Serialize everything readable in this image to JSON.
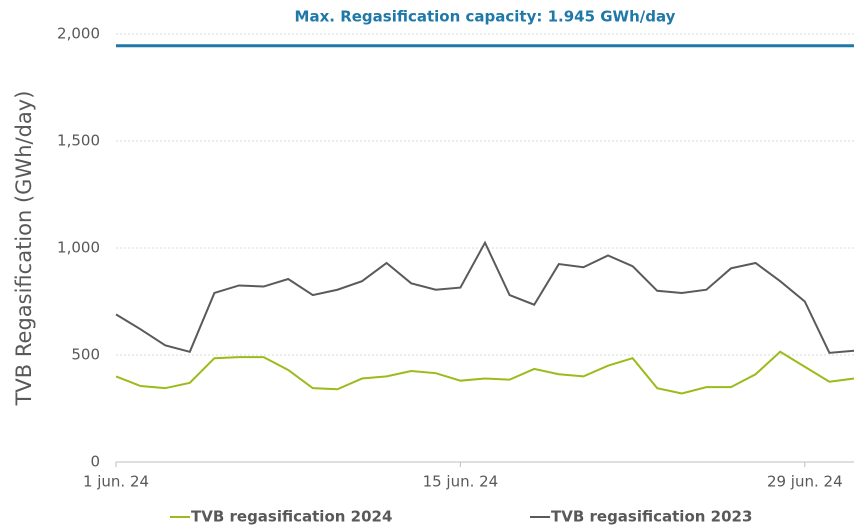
{
  "chart_data": {
    "type": "line",
    "y_label": "TVB Regasification (GWh/day)",
    "annotation": {
      "text": "Max. Regasification capacity: 1.945 GWh/day",
      "value": 1945,
      "color": "#1f78a8"
    },
    "categories": [
      "1 jun. 24",
      null,
      null,
      null,
      null,
      null,
      null,
      null,
      null,
      null,
      null,
      null,
      null,
      null,
      "15 jun. 24",
      null,
      null,
      null,
      null,
      null,
      null,
      null,
      null,
      null,
      null,
      null,
      null,
      null,
      "29 jun. 24",
      null,
      null
    ],
    "series": [
      {
        "name": "TVB regasification 2024",
        "color": "#9bbb1a",
        "values": [
          400,
          355,
          345,
          370,
          485,
          490,
          490,
          430,
          345,
          340,
          390,
          400,
          425,
          415,
          380,
          390,
          385,
          435,
          410,
          400,
          450,
          485,
          345,
          320,
          350,
          350,
          410,
          515,
          445,
          375,
          390
        ]
      },
      {
        "name": "TVB regasification 2023",
        "color": "#5a5a5a",
        "values": [
          690,
          620,
          545,
          515,
          790,
          825,
          820,
          855,
          780,
          805,
          845,
          930,
          835,
          805,
          815,
          1025,
          780,
          735,
          925,
          910,
          965,
          915,
          800,
          790,
          805,
          905,
          930,
          845,
          750,
          510,
          520
        ]
      }
    ],
    "ylim": [
      0,
      2000
    ],
    "yticks": [
      0,
      500,
      {
        "value": 1000,
        "label": "1,000"
      },
      {
        "value": 1500,
        "label": "1,500"
      },
      {
        "value": 2000,
        "label": "2,000"
      }
    ],
    "grid": true
  }
}
